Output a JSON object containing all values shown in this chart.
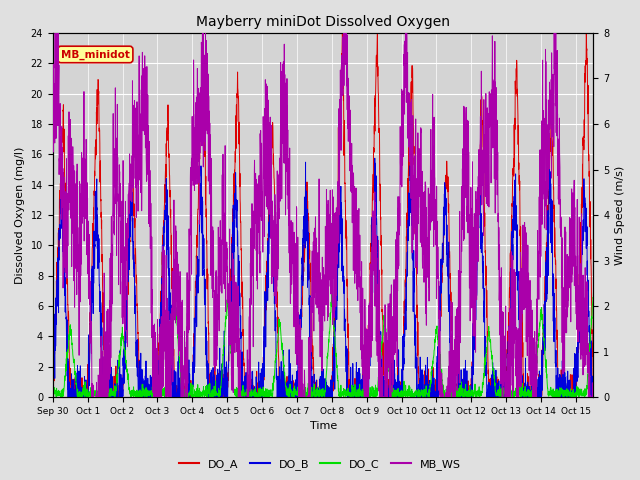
{
  "title": "Mayberry miniDot Dissolved Oxygen",
  "xlabel": "Time",
  "ylabel_left": "Dissolved Oxygen (mg/l)",
  "ylabel_right": "Wind Speed (m/s)",
  "ylim_left": [
    0,
    24
  ],
  "ylim_right": [
    0,
    8.0
  ],
  "yticks_left": [
    0,
    2,
    4,
    6,
    8,
    10,
    12,
    14,
    16,
    18,
    20,
    22,
    24
  ],
  "yticks_right": [
    0.0,
    1.0,
    2.0,
    3.0,
    4.0,
    5.0,
    6.0,
    7.0,
    8.0
  ],
  "colors": {
    "DO_A": "#dd0000",
    "DO_B": "#0000dd",
    "DO_C": "#00dd00",
    "MB_WS": "#aa00aa"
  },
  "background_color": "#e0e0e0",
  "plot_bg_color": "#d4d4d4",
  "legend_box_facecolor": "#ffff99",
  "legend_box_edgecolor": "#cc0000",
  "legend_text": "MB_minidot",
  "legend_entries": [
    "DO_A",
    "DO_B",
    "DO_C",
    "MB_WS"
  ],
  "x_tick_labels": [
    "Sep 30",
    "Oct 1",
    "Oct 2",
    "Oct 3",
    "Oct 4",
    "Oct 5",
    "Oct 6",
    "Oct 7",
    "Oct 8",
    "Oct 9",
    "Oct 10",
    "Oct 11",
    "Oct 12",
    "Oct 13",
    "Oct 14",
    "Oct 15"
  ],
  "x_tick_positions": [
    0,
    1,
    2,
    3,
    4,
    5,
    6,
    7,
    8,
    9,
    10,
    11,
    12,
    13,
    14,
    15
  ],
  "xlim": [
    0,
    15.5
  ],
  "figsize": [
    6.4,
    4.8
  ],
  "dpi": 100
}
